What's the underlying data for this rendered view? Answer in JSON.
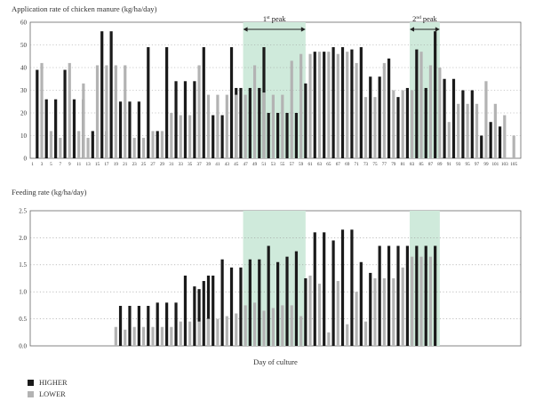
{
  "chart_data": [
    {
      "type": "bar",
      "ylabel": "Application rate of chicken manure (kg/ha/day)",
      "ylim": [
        0,
        60
      ],
      "yticks": [
        0,
        10,
        20,
        30,
        40,
        50,
        60
      ],
      "x_ticks": [
        1,
        3,
        5,
        7,
        9,
        11,
        13,
        15,
        17,
        19,
        21,
        23,
        25,
        27,
        29,
        31,
        33,
        35,
        37,
        39,
        41,
        43,
        45,
        47,
        49,
        51,
        53,
        55,
        57,
        59,
        61,
        63,
        65,
        67,
        69,
        71,
        73,
        75,
        77,
        79,
        81,
        83,
        85,
        87,
        89,
        91,
        93,
        95,
        97,
        99,
        101,
        103,
        105
      ],
      "x_range": [
        1,
        106
      ],
      "grid": "horizontal dotted",
      "peaks": [
        {
          "label": "1",
          "sup": "st",
          "suffix": " peak",
          "x_start": 46.5,
          "x_end": 60
        },
        {
          "label": "2",
          "sup": "nd",
          "suffix": " peak",
          "x_start": 82.5,
          "x_end": 89
        }
      ],
      "series": [
        {
          "name": "HIGHER",
          "color": "#1a1a1a",
          "x": [
            2,
            4,
            6,
            8,
            10,
            12,
            14,
            16,
            17,
            18,
            20,
            22,
            24,
            26,
            28,
            30,
            32,
            34,
            36,
            38,
            40,
            42,
            44,
            45,
            46,
            48,
            50,
            51,
            52,
            54,
            56,
            58,
            60,
            62,
            64,
            66,
            68,
            70,
            72,
            74,
            76,
            78,
            80,
            82,
            84,
            86,
            88,
            90,
            92,
            94,
            96,
            98,
            100,
            102
          ],
          "values": [
            39,
            26,
            26,
            39,
            26,
            26,
            12,
            56,
            12,
            56,
            25,
            25,
            25,
            49,
            12,
            49,
            34,
            34,
            34,
            49,
            19,
            19,
            49,
            31,
            31,
            31,
            31,
            49,
            20,
            20,
            20,
            20,
            33,
            47,
            47,
            49,
            49,
            48,
            49,
            36,
            36,
            44,
            27,
            31,
            48,
            31,
            56,
            35,
            35,
            30,
            30,
            10,
            16,
            14
          ]
        },
        {
          "name": "LOWER",
          "color": "#b3b3b3",
          "x": [
            3,
            5,
            7,
            9,
            11,
            12,
            13,
            15,
            17,
            19,
            21,
            23,
            25,
            27,
            29,
            31,
            33,
            35,
            37,
            39,
            41,
            43,
            45,
            47,
            49,
            51,
            53,
            55,
            57,
            59,
            61,
            63,
            65,
            67,
            69,
            71,
            73,
            75,
            77,
            79,
            81,
            83,
            85,
            87,
            89,
            91,
            93,
            95,
            97,
            99,
            101,
            103,
            105
          ],
          "values": [
            42,
            12,
            9,
            42,
            12,
            33,
            9,
            41,
            41,
            41,
            41,
            9,
            9,
            12,
            12,
            20,
            19,
            19,
            41,
            28,
            28,
            28,
            28,
            28,
            41,
            29,
            28,
            28,
            43,
            46,
            46,
            47,
            47,
            46,
            47,
            42,
            27,
            27,
            42,
            30,
            30,
            30,
            47,
            41,
            40,
            16,
            24,
            24,
            24,
            34,
            24,
            19,
            10
          ]
        }
      ]
    },
    {
      "type": "bar",
      "ylabel": "Feeding rate (kg/ha/day)",
      "xlabel": "Day of culture",
      "ylim": [
        0,
        2.5
      ],
      "yticks": [
        "0.0",
        "0.5",
        "1.0",
        "1.5",
        "2.0",
        "2.5"
      ],
      "x_range": [
        1,
        106
      ],
      "grid": "horizontal dotted",
      "series": [
        {
          "name": "HIGHER",
          "color": "#1a1a1a",
          "x": [
            20,
            22,
            24,
            26,
            28,
            30,
            32,
            34,
            36,
            37,
            38,
            39,
            40,
            42,
            44,
            46,
            48,
            50,
            52,
            54,
            56,
            58,
            60,
            62,
            64,
            66,
            68,
            70,
            72,
            74,
            76,
            78,
            80,
            82,
            84,
            86,
            88
          ],
          "values": [
            0.74,
            0.74,
            0.74,
            0.74,
            0.8,
            0.8,
            0.8,
            1.3,
            1.1,
            1.05,
            1.2,
            1.3,
            1.3,
            1.6,
            1.45,
            1.45,
            1.6,
            1.6,
            1.85,
            1.55,
            1.65,
            1.75,
            1.25,
            2.1,
            2.1,
            1.95,
            2.15,
            2.15,
            1.55,
            1.35,
            1.85,
            1.85,
            1.85,
            1.85,
            1.85,
            1.85,
            1.85
          ]
        },
        {
          "name": "LOWER",
          "color": "#b3b3b3",
          "x": [
            19,
            21,
            23,
            25,
            27,
            29,
            31,
            33,
            35,
            37,
            39,
            41,
            43,
            45,
            47,
            49,
            51,
            53,
            55,
            57,
            59,
            61,
            63,
            65,
            67,
            69,
            71,
            73,
            75,
            77,
            79,
            81,
            83,
            85,
            87
          ],
          "values": [
            0.35,
            0.3,
            0.35,
            0.35,
            0.35,
            0.35,
            0.35,
            0.45,
            0.45,
            0.45,
            0.5,
            0.5,
            0.55,
            0.6,
            0.75,
            0.8,
            0.65,
            0.7,
            0.75,
            0.75,
            0.55,
            1.3,
            1.15,
            0.25,
            1.2,
            0.4,
            1.0,
            0.45,
            1.25,
            1.25,
            1.25,
            1.45,
            1.65,
            1.65,
            1.65
          ]
        }
      ]
    }
  ],
  "legend": [
    {
      "label": "HIGHER",
      "color": "#1a1a1a"
    },
    {
      "label": "LOWER",
      "color": "#b3b3b3"
    }
  ]
}
